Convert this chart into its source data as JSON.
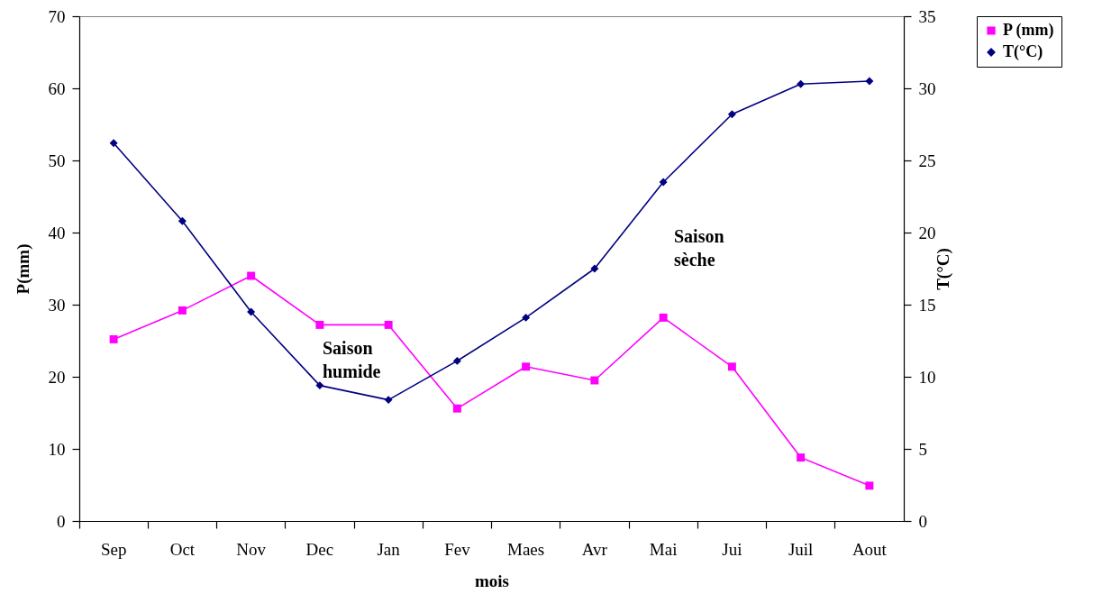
{
  "chart_data": {
    "type": "line",
    "xlabel": "mois",
    "ylabel": "P(mm)",
    "y2label": "T(°C)",
    "categories": [
      "Sep",
      "Oct",
      "Nov",
      "Dec",
      "Jan",
      "Fev",
      "Maes",
      "Avr",
      "Mai",
      "Jui",
      "Juil",
      "Aout"
    ],
    "series": [
      {
        "name": "P (mm)",
        "color": "#ff00ff",
        "marker": "square",
        "values": [
          25.2,
          29.2,
          34,
          27.2,
          27.2,
          15.6,
          21.4,
          19.5,
          28.2,
          21.4,
          8.8,
          4.9
        ]
      },
      {
        "name": "T(°C)",
        "color": "#000080",
        "marker": "diamond",
        "axis": "y2",
        "values": [
          26.2,
          20.8,
          14.5,
          9.4,
          8.4,
          11.1,
          14.1,
          17.5,
          23.5,
          28.2,
          30.3,
          30.5
        ]
      }
    ],
    "ylim": [
      0,
      70
    ],
    "yticks": [
      0,
      10,
      20,
      30,
      40,
      50,
      60,
      70
    ],
    "y2lim": [
      0,
      35
    ],
    "y2ticks": [
      0,
      5,
      10,
      15,
      20,
      25,
      30,
      35
    ],
    "legend": "top right",
    "annotations": [
      "Saison humide",
      "Saison sèche"
    ]
  }
}
